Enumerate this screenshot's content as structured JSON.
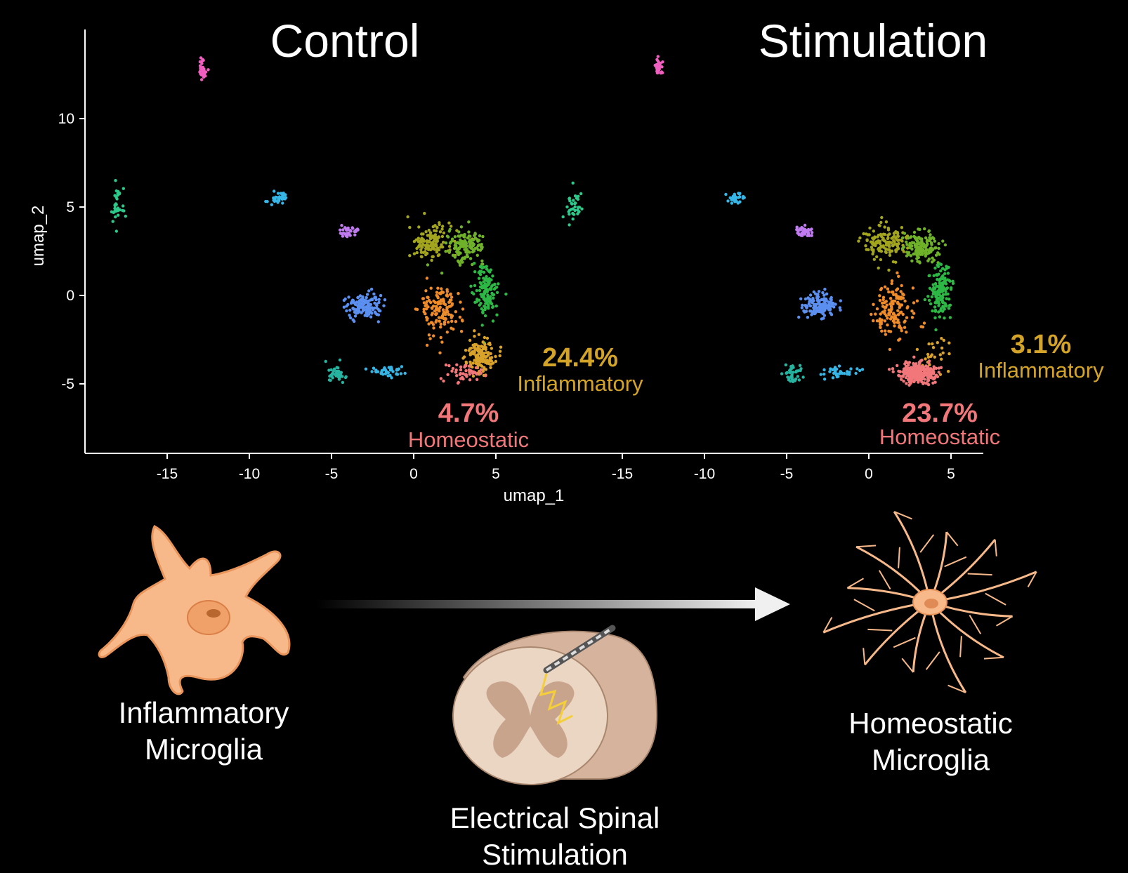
{
  "chart_data": {
    "type": "scatter",
    "xlabel": "umap_1",
    "ylabel": "umap_2",
    "xticks": [
      -15,
      -10,
      -5,
      0,
      5
    ],
    "yticks": [
      10,
      5,
      0,
      -5
    ],
    "xlim": [
      -20,
      7
    ],
    "ylim": [
      -8.9,
      14.6
    ],
    "legend": "none",
    "panels": [
      {
        "title": "Control",
        "annotations": [
          {
            "value": "24.4%",
            "label": "Inflammatory",
            "color": "#d4a428"
          },
          {
            "value": "4.7%",
            "label": "Homeostatic",
            "color": "#f2777a"
          }
        ]
      },
      {
        "title": "Stimulation",
        "annotations": [
          {
            "value": "3.1%",
            "label": "Inflammatory",
            "color": "#d4a428"
          },
          {
            "value": "23.7%",
            "label": "Homeostatic",
            "color": "#f2777a"
          }
        ]
      }
    ],
    "clusters": [
      {
        "color": "#a3a51e",
        "cx": 1.0,
        "cy": 3.0,
        "sx": 1.2,
        "sy": 0.9
      },
      {
        "color": "#6fb22a",
        "cx": 3.2,
        "cy": 2.8,
        "sx": 1.0,
        "sy": 0.8
      },
      {
        "color": "#2db845",
        "cx": 4.4,
        "cy": 0.2,
        "sx": 0.7,
        "sy": 1.3
      },
      {
        "color": "#ee8c2a",
        "cx": 1.6,
        "cy": -0.8,
        "sx": 1.1,
        "sy": 1.4
      },
      {
        "color": "#d9a22a",
        "cx": 4.1,
        "cy": -3.4,
        "sx": 0.8,
        "sy": 0.9
      },
      {
        "color": "#f2777a",
        "cx": 3.0,
        "cy": -4.4,
        "sx": 1.0,
        "sy": 0.5
      },
      {
        "color": "#5b8ff0",
        "cx": -3.0,
        "cy": -0.6,
        "sx": 1.0,
        "sy": 0.6
      },
      {
        "color": "#36b6e6",
        "cx": -1.8,
        "cy": -4.3,
        "sx": 1.1,
        "sy": 0.3
      },
      {
        "color": "#26b3a0",
        "cx": -4.7,
        "cy": -4.4,
        "sx": 0.6,
        "sy": 0.5
      },
      {
        "color": "#2cc98b",
        "cx": -18.0,
        "cy": 5.0,
        "sx": 0.4,
        "sy": 0.9
      },
      {
        "color": "#36b6e6",
        "cx": -8.2,
        "cy": 5.5,
        "sx": 0.5,
        "sy": 0.3
      },
      {
        "color": "#c07bf0",
        "cx": -4.0,
        "cy": 3.6,
        "sx": 0.5,
        "sy": 0.3
      },
      {
        "color": "#f05fc0",
        "cx": -12.8,
        "cy": 12.8,
        "sx": 0.2,
        "sy": 0.5
      }
    ]
  },
  "illustration": {
    "left_caption": [
      "Inflammatory",
      "Microglia"
    ],
    "center_caption": [
      "Electrical Spinal",
      "Stimulation"
    ],
    "right_caption": [
      "Homeostatic",
      "Microglia"
    ],
    "cell_color": "#f8b98a",
    "arrow_color": "#ffffff",
    "current_color": "#f4cf3a"
  }
}
